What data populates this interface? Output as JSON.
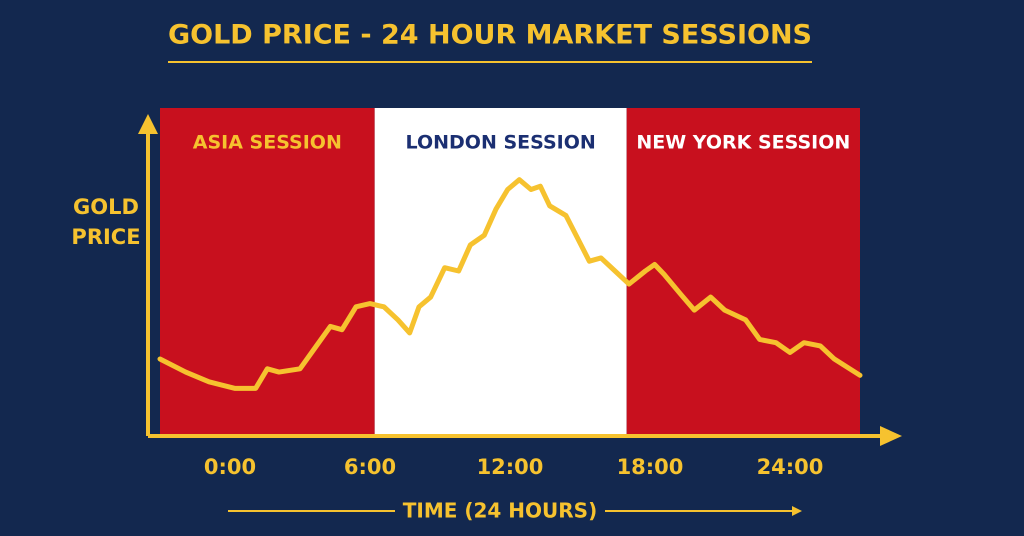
{
  "chart_data": {
    "type": "line",
    "title": "GOLD PRICE - 24 HOUR MARKET SESSIONS",
    "y_label": "GOLD PRICE",
    "x_label": "TIME (24 HOURS)",
    "xlim": [
      -3,
      27
    ],
    "ylim": [
      0,
      100
    ],
    "xticks": [
      {
        "value": 0,
        "label": "0:00"
      },
      {
        "value": 6,
        "label": "6:00"
      },
      {
        "value": 12,
        "label": "12:00"
      },
      {
        "value": 18,
        "label": "18:00"
      },
      {
        "value": 24,
        "label": "24:00"
      }
    ],
    "sessions": [
      {
        "name": "ASIA SESSION",
        "start": -3,
        "end": 6.2,
        "color": "#c8101e",
        "text_color": "#f6c22f"
      },
      {
        "name": "LONDON SESSION",
        "start": 6.2,
        "end": 17,
        "color": "#ffffff",
        "text_color": "#1b2f72"
      },
      {
        "name": "NEW YORK SESSION",
        "start": 17,
        "end": 27,
        "color": "#c8101e",
        "text_color": "#ffffff"
      }
    ],
    "series": [
      {
        "color": "#f6c22f",
        "x": [
          -3,
          -1.9,
          -0.9,
          0.2,
          1.1,
          1.6,
          2.1,
          3,
          3.6,
          4.3,
          4.8,
          5.4,
          6,
          6.6,
          7.2,
          7.7,
          8.1,
          8.6,
          9.2,
          9.8,
          10.3,
          10.9,
          11.4,
          11.9,
          12.4,
          12.9,
          13.3,
          13.7,
          14.4,
          14.9,
          15.4,
          15.9,
          16.5,
          17.1,
          17.8,
          18.2,
          18.6,
          19.3,
          19.9,
          20.6,
          21.2,
          22.1,
          22.7,
          23.4,
          24,
          24.6,
          25.3,
          25.9,
          27
        ],
        "values": [
          23,
          19,
          16,
          14,
          14,
          20,
          19,
          20,
          26,
          33,
          32,
          39,
          40,
          39,
          35,
          31,
          39,
          42,
          51,
          50,
          58,
          61,
          69,
          75,
          78,
          75,
          76,
          70,
          67,
          60,
          53,
          54,
          50,
          46,
          50,
          52,
          49,
          43,
          38,
          42,
          38,
          35,
          29,
          28,
          25,
          28,
          27,
          23,
          18
        ]
      }
    ]
  }
}
